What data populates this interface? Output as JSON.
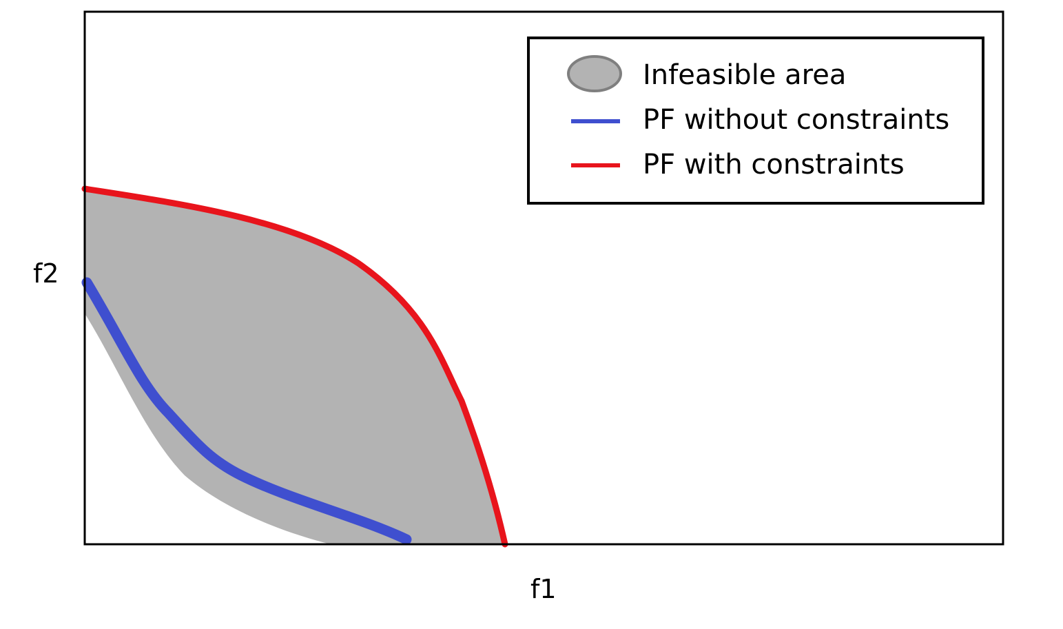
{
  "axes": {
    "x_label": "f1",
    "y_label": "f2"
  },
  "legend": {
    "position": "top-right",
    "items": [
      {
        "label": "Infeasible area",
        "symbol": "ellipse",
        "color": "#b3b3b3",
        "stroke": "#7f7f7f"
      },
      {
        "label": "PF without constraints",
        "symbol": "line",
        "color": "#3f4fcf"
      },
      {
        "label": "PF with constraints",
        "symbol": "line",
        "color": "#e8141c"
      }
    ]
  },
  "colors": {
    "infeasible_fill": "#b3b3b3",
    "pf_unconstrained": "#3f4fcf",
    "pf_constrained": "#e8141c",
    "frame": "#000000"
  }
}
